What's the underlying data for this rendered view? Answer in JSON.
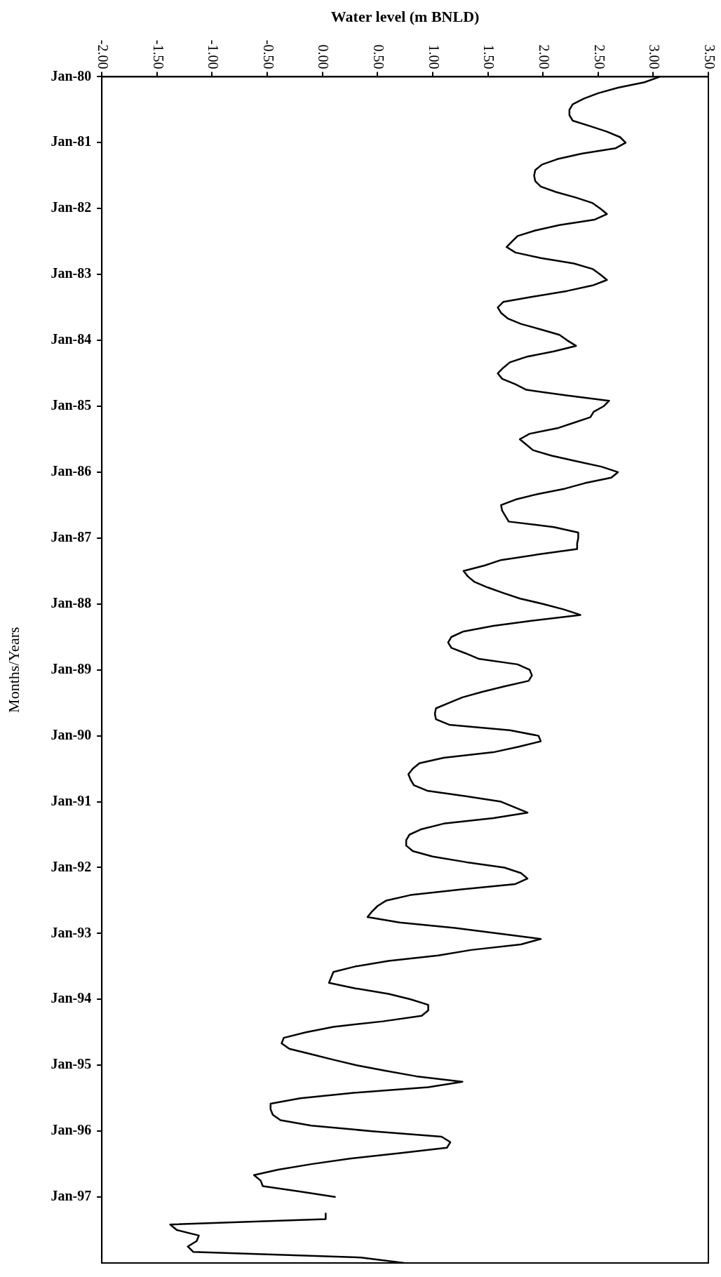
{
  "chart_data": {
    "type": "line",
    "orientation": "horizontal",
    "xlabel": "Water level (m BNLD)",
    "ylabel": "Months/Years",
    "categories": [
      "Jan-80",
      null,
      null,
      null,
      null,
      null,
      null,
      null,
      null,
      null,
      null,
      null,
      "Jan-81",
      null,
      null,
      null,
      null,
      null,
      null,
      null,
      null,
      null,
      null,
      null,
      "Jan-82",
      null,
      null,
      null,
      null,
      null,
      null,
      null,
      null,
      null,
      null,
      null,
      "Jan-83",
      null,
      null,
      null,
      null,
      null,
      null,
      null,
      null,
      null,
      null,
      null,
      "Jan-84",
      null,
      null,
      null,
      null,
      null,
      null,
      null,
      null,
      null,
      null,
      null,
      "Jan-85",
      null,
      null,
      null,
      null,
      null,
      null,
      null,
      null,
      null,
      null,
      null,
      "Jan-86",
      null,
      null,
      null,
      null,
      null,
      null,
      null,
      null,
      null,
      null,
      null,
      "Jan-87",
      null,
      null,
      null,
      null,
      null,
      null,
      null,
      null,
      null,
      null,
      null,
      "Jan-88",
      null,
      null,
      null,
      null,
      null,
      null,
      null,
      null,
      null,
      null,
      null,
      "Jan-89",
      null,
      null,
      null,
      null,
      null,
      null,
      null,
      null,
      null,
      null,
      null,
      "Jan-90",
      null,
      null,
      null,
      null,
      null,
      null,
      null,
      null,
      null,
      null,
      null,
      "Jan-91",
      null,
      null,
      null,
      null,
      null,
      null,
      null,
      null,
      null,
      null,
      null,
      "Jan-92",
      null,
      null,
      null,
      null,
      null,
      null,
      null,
      null,
      null,
      null,
      null,
      "Jan-93",
      null,
      null,
      null,
      null,
      null,
      null,
      null,
      null,
      null,
      null,
      null,
      "Jan-94",
      null,
      null,
      null,
      null,
      null,
      null,
      null,
      null,
      null,
      null,
      null,
      "Jan-95",
      null,
      null,
      null,
      null,
      null,
      null,
      null,
      null,
      null,
      null,
      null,
      "Jan-96",
      null,
      null,
      null,
      null,
      null,
      null,
      null,
      null,
      null,
      null,
      null,
      "Jan-97",
      null,
      null,
      null,
      null,
      null,
      null,
      null,
      null,
      null,
      null,
      null,
      null
    ],
    "values": [
      3.06,
      2.92,
      2.68,
      2.5,
      2.37,
      2.27,
      2.24,
      2.24,
      2.27,
      2.43,
      2.58,
      2.7,
      2.75,
      2.66,
      2.35,
      2.13,
      1.99,
      1.93,
      1.92,
      1.93,
      1.98,
      2.12,
      2.3,
      2.45,
      2.52,
      2.58,
      2.47,
      2.15,
      1.93,
      1.77,
      1.72,
      1.67,
      1.75,
      1.98,
      2.28,
      2.45,
      2.52,
      2.58,
      2.45,
      2.22,
      1.92,
      1.64,
      1.59,
      1.62,
      1.68,
      1.8,
      1.98,
      2.15,
      2.22,
      2.3,
      2.1,
      1.85,
      1.7,
      1.64,
      1.59,
      1.63,
      1.75,
      1.85,
      2.2,
      2.6,
      2.55,
      2.46,
      2.43,
      2.28,
      2.13,
      1.88,
      1.79,
      1.85,
      1.91,
      2.08,
      2.3,
      2.53,
      2.68,
      2.62,
      2.38,
      2.2,
      1.95,
      1.75,
      1.62,
      1.63,
      1.66,
      1.69,
      2.1,
      2.32,
      2.32,
      2.31,
      2.31,
      1.95,
      1.62,
      1.47,
      1.28,
      1.32,
      1.38,
      1.5,
      1.64,
      1.79,
      2.0,
      2.19,
      2.34,
      1.92,
      1.55,
      1.28,
      1.17,
      1.14,
      1.17,
      1.3,
      1.42,
      1.77,
      1.88,
      1.9,
      1.87,
      1.65,
      1.45,
      1.27,
      1.15,
      1.03,
      1.02,
      1.03,
      1.15,
      1.7,
      1.96,
      1.98,
      1.78,
      1.55,
      1.1,
      0.88,
      0.82,
      0.78,
      0.8,
      0.83,
      0.95,
      1.3,
      1.62,
      1.74,
      1.86,
      1.55,
      1.1,
      0.9,
      0.79,
      0.76,
      0.76,
      0.82,
      1.0,
      1.3,
      1.65,
      1.8,
      1.86,
      1.75,
      1.25,
      0.8,
      0.58,
      0.5,
      0.45,
      0.41,
      0.7,
      1.2,
      1.6,
      1.98,
      1.8,
      1.35,
      1.05,
      0.6,
      0.3,
      0.1,
      0.08,
      0.06,
      0.3,
      0.6,
      0.8,
      0.96,
      0.96,
      0.9,
      0.55,
      0.1,
      -0.15,
      -0.35,
      -0.37,
      -0.3,
      -0.1,
      0.1,
      0.31,
      0.57,
      0.85,
      1.27,
      0.96,
      0.3,
      -0.2,
      -0.47,
      -0.47,
      -0.45,
      -0.38,
      -0.1,
      0.45,
      1.08,
      1.16,
      1.13,
      0.7,
      0.25,
      -0.1,
      -0.4,
      -0.62,
      -0.56,
      -0.54,
      -0.2,
      0.12,
      null,
      null,
      0.03,
      0.03,
      -1.38,
      -1.32,
      -1.12,
      -1.14,
      -1.22,
      -1.17,
      0.35,
      0.74
    ],
    "color": "#000000",
    "xlim": [
      -2,
      3.5
    ],
    "xticks": [
      {
        "value": -2,
        "label": "-2.00"
      },
      {
        "value": -1.5,
        "label": "-1.50"
      },
      {
        "value": -1,
        "label": "-1.00"
      },
      {
        "value": -0.5,
        "label": "-0.50"
      },
      {
        "value": 0,
        "label": "0.00"
      },
      {
        "value": 0.5,
        "label": "0.50"
      },
      {
        "value": 1,
        "label": "1.00"
      },
      {
        "value": 1.5,
        "label": "1.50"
      },
      {
        "value": 2,
        "label": "2.00"
      },
      {
        "value": 2.5,
        "label": "2.50"
      },
      {
        "value": 3,
        "label": "3.00"
      },
      {
        "value": 3.5,
        "label": "3.50"
      }
    ],
    "grid": false,
    "legend": false,
    "marker": "none",
    "line_style": "solid"
  }
}
